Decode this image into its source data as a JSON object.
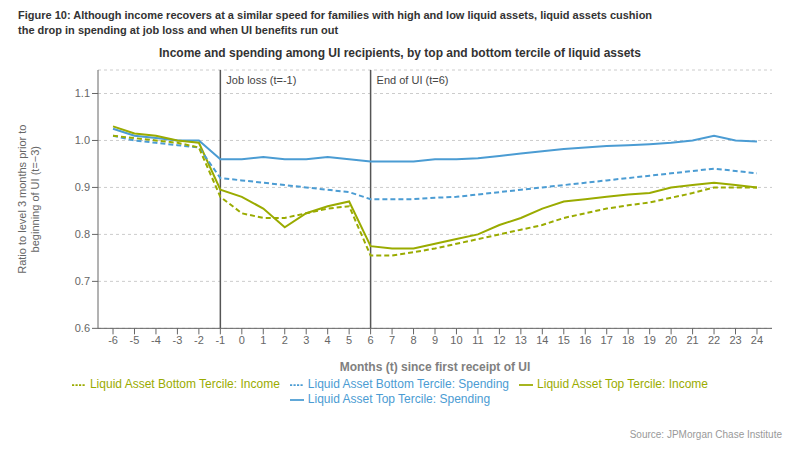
{
  "chart_data": {
    "type": "line",
    "title": "Figure 10: Although income recovers at a similar speed for families with high and low liquid assets, liquid assets cushion\nthe drop in spending at job loss and when UI benefits run out",
    "subtitle": "Income and spending among UI recipients, by top and bottom tercile of liquid assets",
    "x_label": "Months (t) since first receipt of UI",
    "y_label": "Ratio to level 3 months prior to\nbeginning of UI (t=−3)",
    "source": "Source: JPMorgan Chase Institute",
    "x": [
      -6,
      -5,
      -4,
      -3,
      -2,
      -1,
      0,
      1,
      2,
      3,
      4,
      5,
      6,
      7,
      8,
      9,
      10,
      11,
      12,
      13,
      14,
      15,
      16,
      17,
      18,
      19,
      20,
      21,
      22,
      23,
      24
    ],
    "xlim": [
      -6.7,
      24.7
    ],
    "xticks": [
      -6,
      -5,
      -4,
      -3,
      -2,
      -1,
      0,
      1,
      2,
      3,
      4,
      5,
      6,
      7,
      8,
      9,
      10,
      11,
      12,
      13,
      14,
      15,
      16,
      17,
      18,
      19,
      20,
      21,
      22,
      23,
      24
    ],
    "ylim": [
      0.6,
      1.15
    ],
    "yticks": [
      0.6,
      0.7,
      0.8,
      0.9,
      {
        "value": 1.0,
        "label": "1.0"
      },
      1.1
    ],
    "grid": true,
    "legend": "bottom",
    "series": [
      {
        "name": "Liquid Asset Top Tercile: Spending",
        "color": "#4B9CD3",
        "line_style": "solid",
        "values": [
          1.025,
          1.01,
          1.005,
          1.0,
          1.0,
          0.96,
          0.96,
          0.965,
          0.96,
          0.96,
          0.965,
          0.96,
          0.955,
          0.955,
          0.955,
          0.96,
          0.96,
          0.962,
          0.967,
          0.972,
          0.977,
          0.982,
          0.985,
          0.988,
          0.99,
          0.992,
          0.995,
          1.0,
          1.01,
          1.0,
          0.998
        ]
      },
      {
        "name": "Liquid Asset Top Tercile: Income",
        "color": "#9AAB00",
        "line_style": "solid",
        "values": [
          1.03,
          1.015,
          1.01,
          1.0,
          0.995,
          0.895,
          0.88,
          0.855,
          0.815,
          0.845,
          0.86,
          0.87,
          0.775,
          0.77,
          0.77,
          0.78,
          0.79,
          0.8,
          0.82,
          0.835,
          0.855,
          0.87,
          0.875,
          0.88,
          0.885,
          0.888,
          0.9,
          0.905,
          0.91,
          0.905,
          0.9
        ]
      },
      {
        "name": "Liquid Asset Bottom Tercile: Spending",
        "color": "#4B9CD3",
        "line_style": "dashed",
        "values": [
          1.01,
          1.0,
          0.995,
          0.99,
          0.985,
          0.92,
          0.915,
          0.91,
          0.905,
          0.9,
          0.895,
          0.89,
          0.875,
          0.875,
          0.875,
          0.878,
          0.88,
          0.885,
          0.89,
          0.895,
          0.9,
          0.905,
          0.91,
          0.915,
          0.92,
          0.925,
          0.93,
          0.935,
          0.94,
          0.935,
          0.93
        ]
      },
      {
        "name": "Liquid Asset Bottom Tercile: Income",
        "color": "#9AAB00",
        "line_style": "dashed",
        "values": [
          1.01,
          1.005,
          1.0,
          0.995,
          0.985,
          0.88,
          0.845,
          0.835,
          0.835,
          0.845,
          0.855,
          0.86,
          0.755,
          0.755,
          0.762,
          0.77,
          0.78,
          0.79,
          0.8,
          0.81,
          0.82,
          0.835,
          0.845,
          0.855,
          0.862,
          0.868,
          0.878,
          0.888,
          0.9,
          0.9,
          0.9
        ]
      }
    ],
    "annotations": [
      {
        "x": -1,
        "text": "Job loss (t=-1)",
        "color": "#555555"
      },
      {
        "x": 6,
        "text": "End of UI (t=6)",
        "color": "#555555"
      }
    ]
  }
}
